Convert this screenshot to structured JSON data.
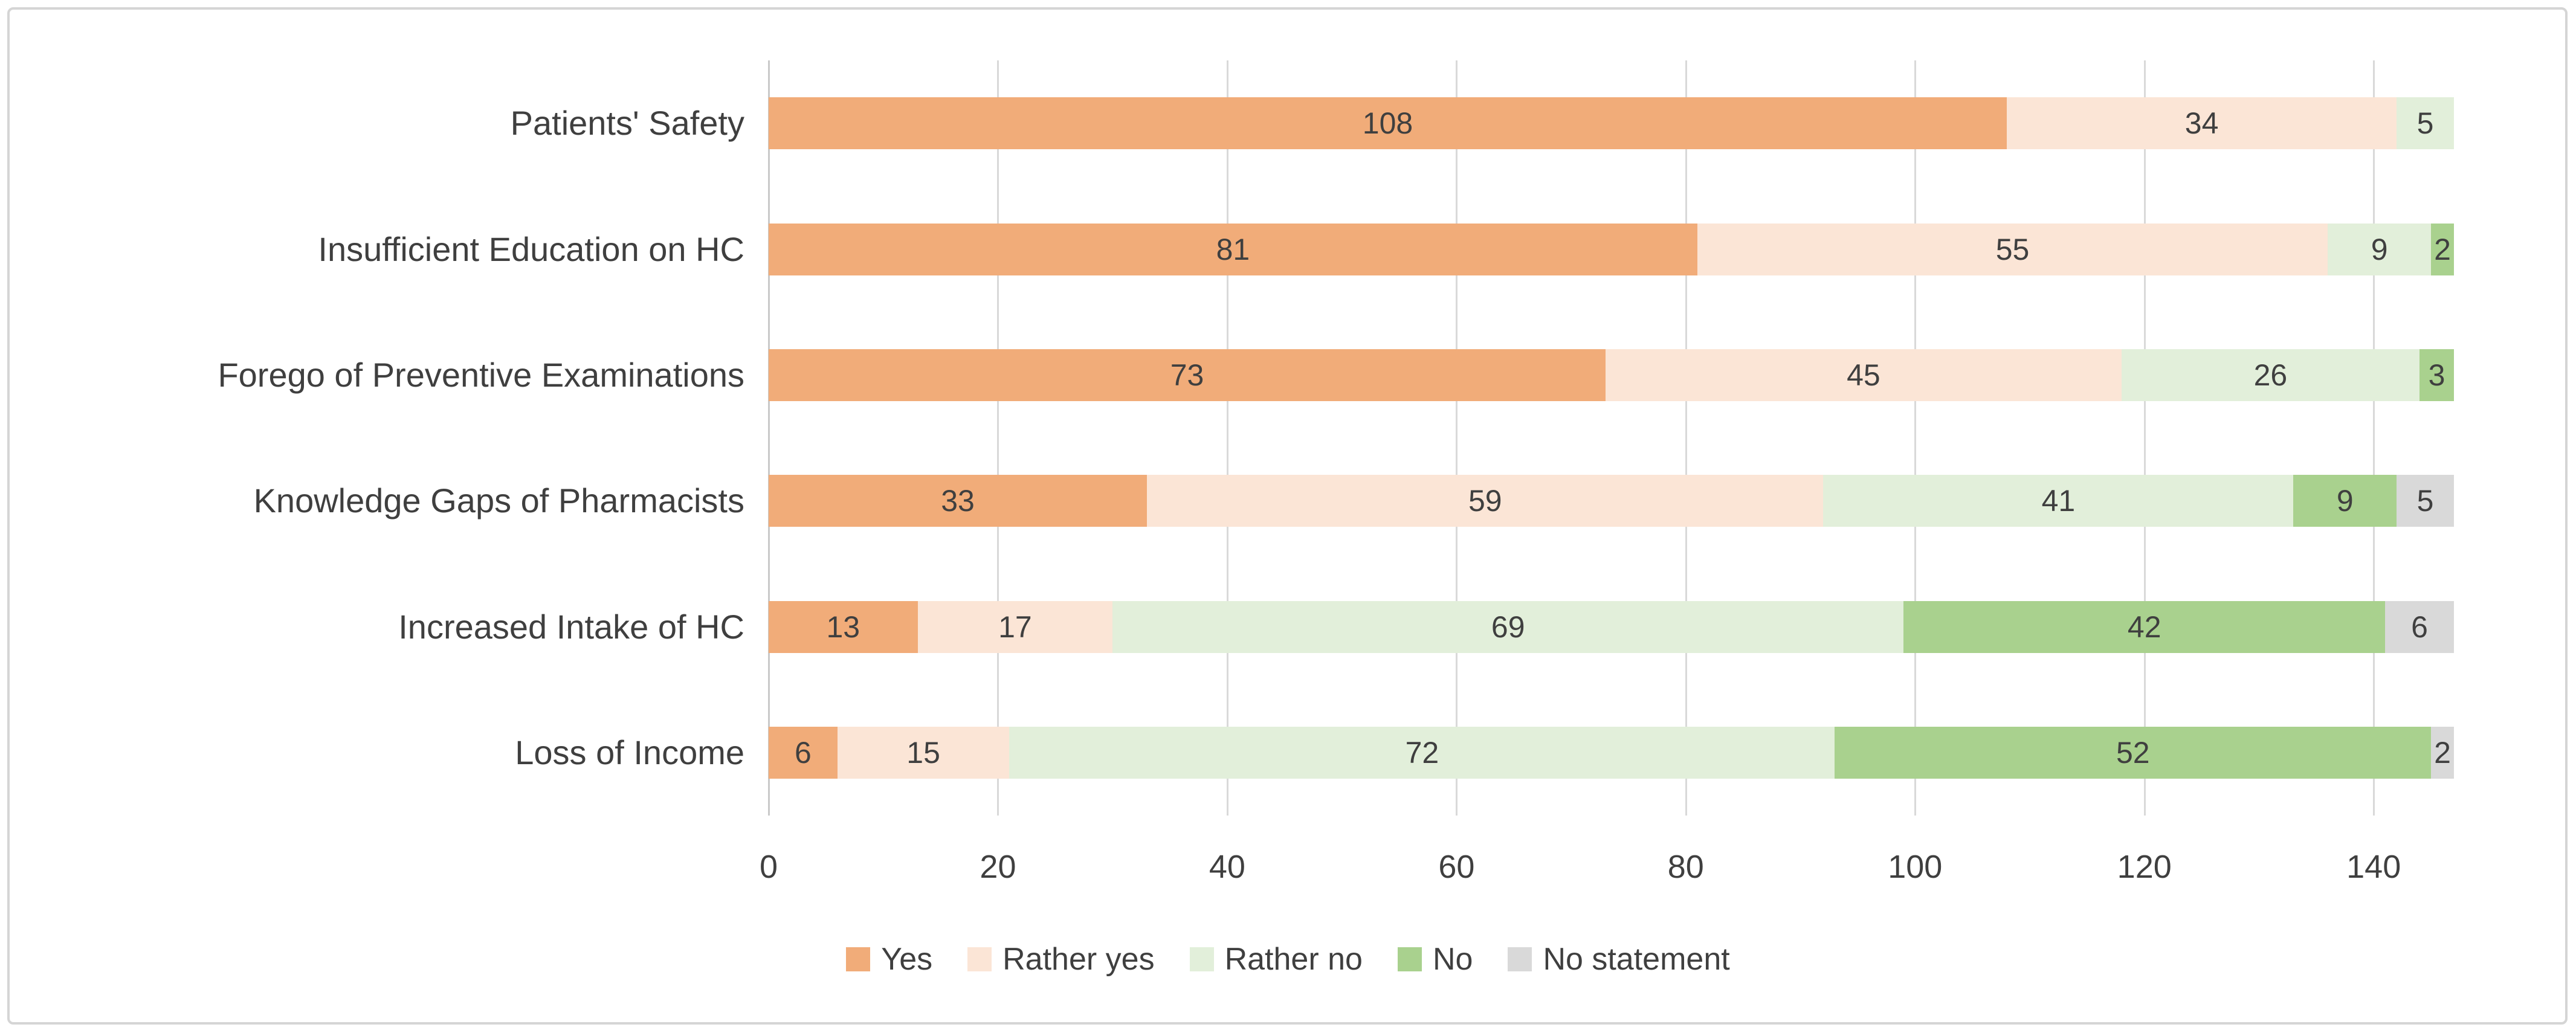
{
  "chart_data": {
    "type": "bar",
    "stacked": true,
    "orientation": "horizontal",
    "title": "",
    "categories": [
      "Patients' Safety",
      "Insufficient Education on HC",
      "Forego of Preventive Examinations",
      "Knowledge Gaps of Pharmacists",
      "Increased Intake of HC",
      "Loss of Income"
    ],
    "series": [
      {
        "name": "Yes",
        "color": "#F1AC79",
        "values": [
          108,
          81,
          73,
          33,
          13,
          6
        ]
      },
      {
        "name": "Rather yes",
        "color": "#FBE5D6",
        "values": [
          34,
          55,
          45,
          59,
          17,
          15
        ]
      },
      {
        "name": "Rather no",
        "color": "#E2EFDA",
        "values": [
          5,
          9,
          26,
          41,
          69,
          72
        ]
      },
      {
        "name": "No",
        "color": "#A9D18E",
        "values": [
          0,
          2,
          3,
          9,
          42,
          52
        ]
      },
      {
        "name": "No statement",
        "color": "#D9D9D9",
        "values": [
          0,
          0,
          0,
          5,
          6,
          2
        ]
      }
    ],
    "x_ticks": [
      0,
      20,
      40,
      60,
      80,
      100,
      120,
      140
    ],
    "xlim": [
      0,
      147
    ],
    "grid": true,
    "legend_position": "bottom",
    "data_labels": "centered, shown only for non-zero segments"
  },
  "style": {
    "background": "#FFFFFF",
    "frame_border_color": "#D5D5D5",
    "gridline_color": "#D9D9D9",
    "axis_line_color": "#C9C9C9",
    "text_color": "#3F3F3F"
  }
}
